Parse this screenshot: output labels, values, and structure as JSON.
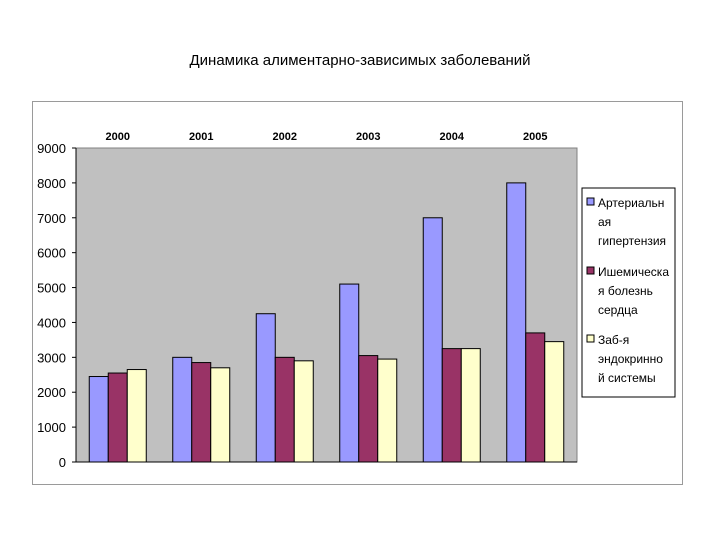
{
  "page": {
    "title": "Динамика алиментарно-зависимых заболеваний"
  },
  "chart_data": {
    "type": "bar",
    "title": "",
    "categories": [
      "2000",
      "2001",
      "2002",
      "2003",
      "2004",
      "2005"
    ],
    "series": [
      {
        "name": "Артериальная гипертензия",
        "legend_lines": [
          "Артериальн",
          "ая",
          "гипертензия"
        ],
        "color": "#9999ff",
        "values": [
          2450,
          3000,
          4250,
          5100,
          7000,
          8000
        ]
      },
      {
        "name": "Ишемическая болезнь сердца",
        "legend_lines": [
          "Ишемическа",
          "я болезнь",
          "сердца"
        ],
        "color": "#993366",
        "values": [
          2550,
          2850,
          3000,
          3050,
          3250,
          3700
        ]
      },
      {
        "name": "Заб-я эндокринной системы",
        "legend_lines": [
          "Заб-я",
          "эндокринно",
          "й системы"
        ],
        "color": "#ffffcc",
        "values": [
          2650,
          2700,
          2900,
          2950,
          3250,
          3450
        ]
      }
    ],
    "y_ticks": [
      "0",
      "1000",
      "2000",
      "3000",
      "4000",
      "5000",
      "6000",
      "7000",
      "8000",
      "9000"
    ],
    "ylim": [
      0,
      9000
    ],
    "xlabel": "",
    "ylabel": "",
    "plot_background": "#c0c0c0",
    "grid": false,
    "legend_position": "right"
  }
}
